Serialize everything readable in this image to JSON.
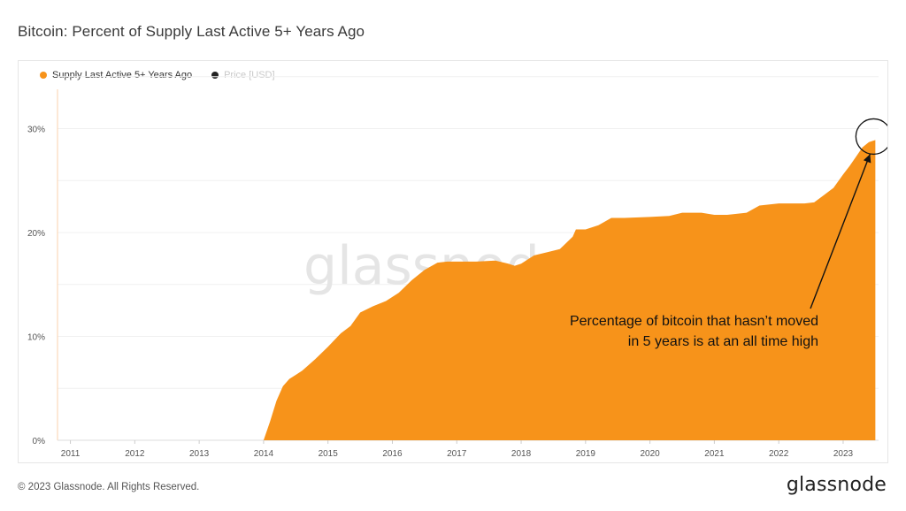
{
  "header": {
    "title": "Bitcoin: Percent of Supply Last Active 5+ Years Ago"
  },
  "legend": {
    "series_label": "Supply Last Active 5+ Years Ago",
    "price_label": "Price [USD]",
    "series_color": "#f7931a",
    "price_color": "#222222"
  },
  "watermark": {
    "text": "glassnode"
  },
  "footer": {
    "copyright": "© 2023 Glassnode. All Rights Reserved.",
    "brand": "glassnode"
  },
  "chart_data": {
    "type": "area",
    "x_ticks": [
      2011,
      2012,
      2013,
      2014,
      2015,
      2016,
      2017,
      2018,
      2019,
      2020,
      2021,
      2022,
      2023
    ],
    "x_tick_labels": [
      "2011",
      "2012",
      "2013",
      "2014",
      "2015",
      "2016",
      "2017",
      "2018",
      "2019",
      "2020",
      "2021",
      "2022",
      "2023"
    ],
    "y_ticks": [
      0,
      10,
      20,
      30
    ],
    "y_tick_labels": [
      "0%",
      "10%",
      "20%",
      "30%"
    ],
    "xlim": [
      2010.8,
      2023.55
    ],
    "ylim": [
      0,
      36
    ],
    "series": [
      {
        "name": "Supply Last Active 5+ Years Ago",
        "color": "#f7931a",
        "x": [
          2014.0,
          2014.1,
          2014.2,
          2014.3,
          2014.4,
          2014.5,
          2014.6,
          2014.8,
          2015.0,
          2015.2,
          2015.35,
          2015.5,
          2015.7,
          2015.9,
          2016.1,
          2016.3,
          2016.5,
          2016.7,
          2016.85,
          2017.0,
          2017.3,
          2017.6,
          2017.8,
          2017.9,
          2018.0,
          2018.2,
          2018.4,
          2018.6,
          2018.8,
          2018.85,
          2018.95,
          2019.0,
          2019.2,
          2019.4,
          2019.6,
          2020.0,
          2020.3,
          2020.5,
          2020.8,
          2021.0,
          2021.2,
          2021.5,
          2021.7,
          2022.0,
          2022.2,
          2022.4,
          2022.55,
          2022.7,
          2022.85,
          2023.0,
          2023.1,
          2023.2,
          2023.3,
          2023.4,
          2023.5
        ],
        "values": [
          0.0,
          1.8,
          3.8,
          5.2,
          5.9,
          6.3,
          6.7,
          7.8,
          9.0,
          10.3,
          11.0,
          12.3,
          12.9,
          13.4,
          14.2,
          15.4,
          16.4,
          17.1,
          17.2,
          17.2,
          17.2,
          17.3,
          17.0,
          16.8,
          17.0,
          17.8,
          18.1,
          18.4,
          19.6,
          20.3,
          20.3,
          20.3,
          20.7,
          21.4,
          21.4,
          21.5,
          21.6,
          21.9,
          21.9,
          21.7,
          21.7,
          21.9,
          22.6,
          22.8,
          22.8,
          22.8,
          22.9,
          23.6,
          24.3,
          25.6,
          26.4,
          27.3,
          28.2,
          28.7,
          28.9
        ]
      }
    ],
    "annotation": {
      "lines": [
        "Percentage of bitcoin that hasn’t moved",
        "in 5 years is at an all time high"
      ],
      "x": 2023.5,
      "y": 28.9
    },
    "grid": true,
    "legend_position": "top-left"
  }
}
